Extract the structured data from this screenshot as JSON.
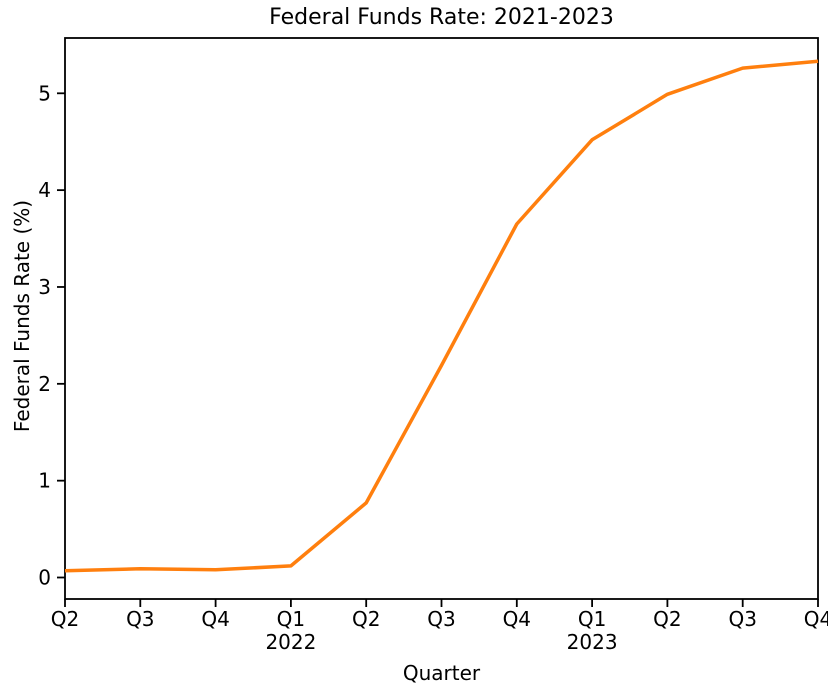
{
  "figure": {
    "background_color": "#ffffff",
    "text_color": "#000000",
    "axes_color": "#000000"
  },
  "chart_data": {
    "type": "line",
    "title": "Federal Funds Rate: 2021-2023",
    "xlabel": "Quarter",
    "ylabel": "Federal Funds Rate (%)",
    "categories": [
      "Q2",
      "Q3",
      "Q4",
      "Q1\n2022",
      "Q2",
      "Q3",
      "Q4",
      "Q1\n2023",
      "Q2",
      "Q3",
      "Q4"
    ],
    "series": [
      {
        "name": "Federal Funds Rate (%)",
        "values": [
          0.07,
          0.09,
          0.08,
          0.12,
          0.77,
          2.19,
          3.65,
          4.52,
          4.99,
          5.26,
          5.33
        ],
        "color": "#ff7f0e",
        "line_width": 3.5
      }
    ],
    "yticks": [
      0,
      1,
      2,
      3,
      4,
      5
    ],
    "ylim": [
      -0.222,
      5.571
    ],
    "xlim_mode": "tight",
    "grid": false,
    "legend": false
  }
}
